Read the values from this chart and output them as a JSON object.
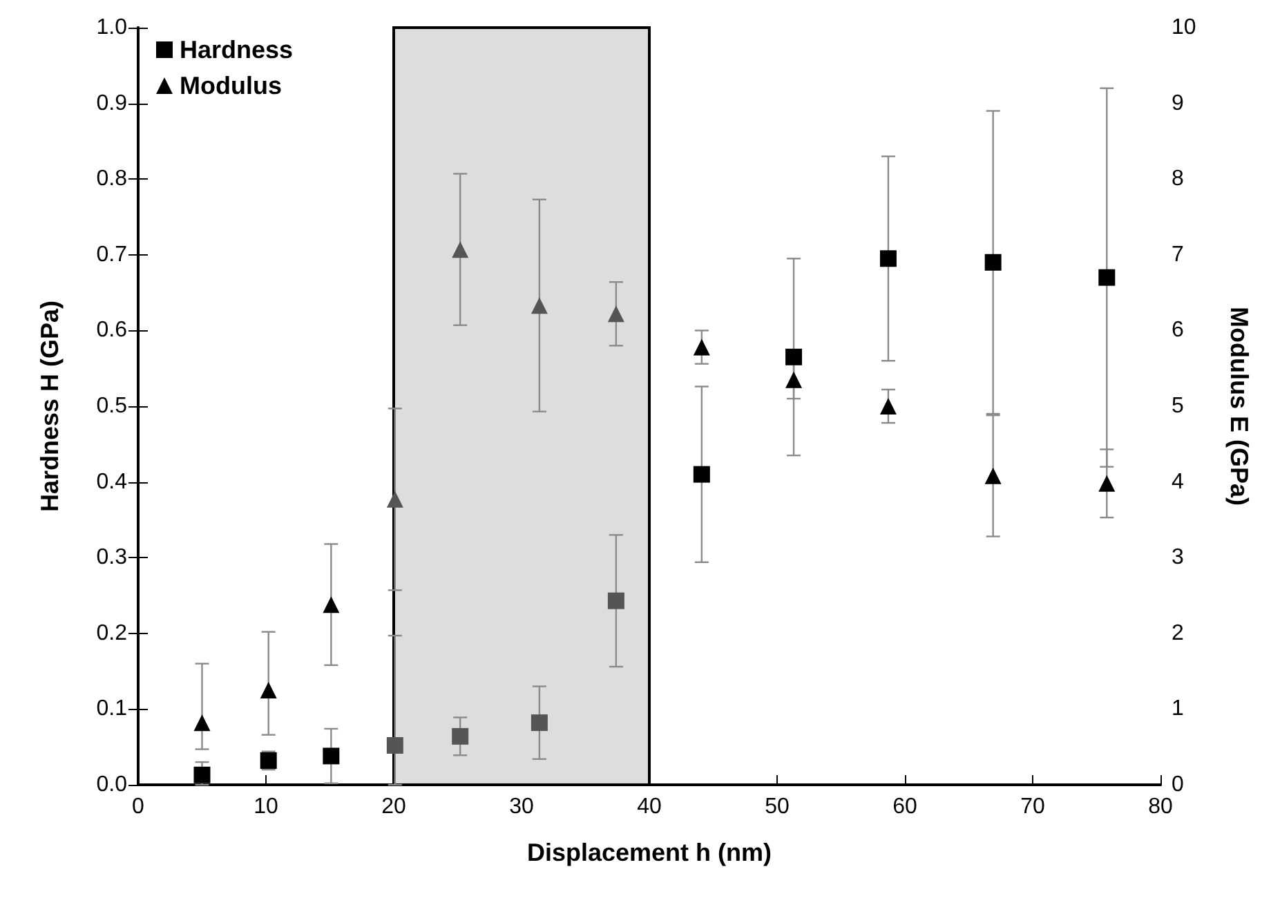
{
  "chart_data": {
    "type": "scatter",
    "xlabel": "Displacement h (nm)",
    "ylabel": "Hardness H (GPa)",
    "y2label": "Modulus E (GPa)",
    "xlim": [
      0,
      80
    ],
    "xticks": [
      0,
      10,
      20,
      30,
      40,
      50,
      60,
      70,
      80
    ],
    "ylim": [
      0,
      1.0
    ],
    "yticks": [
      {
        "value": 0,
        "label": "0.0"
      },
      0.1,
      0.2,
      0.3,
      0.4,
      0.5,
      0.6,
      0.7,
      0.8,
      0.9,
      {
        "value": 1,
        "label": "1.0"
      }
    ],
    "y2lim": [
      0,
      10
    ],
    "y2ticks": [
      0,
      1,
      2,
      3,
      4,
      5,
      6,
      7,
      8,
      9,
      10
    ],
    "grid": false,
    "legend": "top left",
    "bands": [
      {
        "axis": "x",
        "from": 20,
        "to": 40,
        "color": "#dddddd"
      }
    ],
    "series": [
      {
        "name": "Hardness",
        "marker": "square",
        "color": "#000000",
        "colors": [
          "#000000",
          "#000000",
          "#000000",
          "#555555",
          "#555555",
          "#555555",
          "#555555",
          "#000000",
          "#000000",
          "#000000",
          "#000000",
          "#000000"
        ],
        "x": [
          5,
          10.2,
          15.1,
          20.1,
          25.2,
          31.4,
          37.4,
          44.1,
          51.3,
          58.7,
          66.9,
          75.8
        ],
        "values": [
          0.013,
          0.032,
          0.038,
          0.052,
          0.064,
          0.082,
          0.243,
          0.41,
          0.565,
          0.695,
          0.69,
          0.67
        ],
        "errors": [
          [
            0,
            0.03
          ],
          [
            0.02,
            0.044
          ],
          [
            0.002,
            0.074
          ],
          [
            0,
            0.197
          ],
          0.025,
          0.048,
          0.087,
          0.116,
          0.13,
          0.135,
          0.2,
          0.25
        ]
      },
      {
        "name": "Modulus",
        "marker": "triangle",
        "axis": "y2",
        "color": "#000000",
        "colors": [
          "#000000",
          "#000000",
          "#000000",
          "#555555",
          "#555555",
          "#555555",
          "#555555",
          "#000000",
          "#000000",
          "#000000",
          "#000000",
          "#000000"
        ],
        "x": [
          5,
          10.2,
          15.1,
          20.1,
          25.2,
          31.4,
          37.4,
          44.1,
          51.3,
          58.7,
          66.9,
          75.8
        ],
        "values": [
          0.82,
          1.25,
          2.38,
          3.77,
          7.07,
          6.33,
          6.22,
          5.78,
          5.35,
          5.0,
          4.08,
          3.98
        ],
        "errors": [
          [
            0.47,
            1.6
          ],
          [
            0.66,
            2.02
          ],
          0.8,
          1.2,
          1.0,
          1.4,
          0.42,
          0.22,
          0.25,
          0.22,
          0.8,
          0.45
        ]
      }
    ]
  }
}
